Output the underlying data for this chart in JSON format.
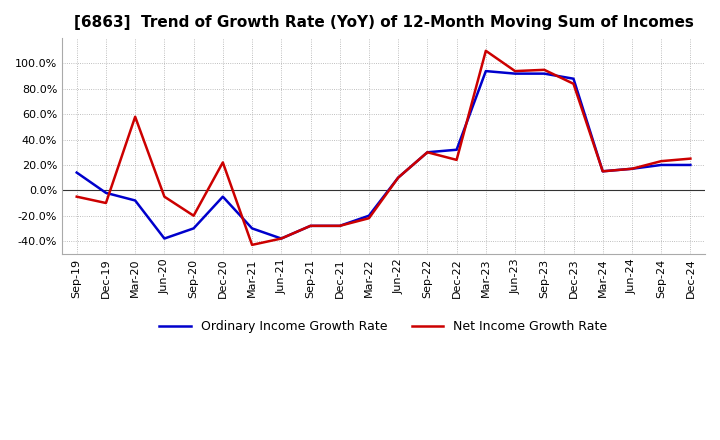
{
  "title": "[6863]  Trend of Growth Rate (YoY) of 12-Month Moving Sum of Incomes",
  "title_fontsize": 11,
  "ylim": [
    -0.5,
    1.2
  ],
  "yticks": [
    -0.4,
    -0.2,
    0.0,
    0.2,
    0.4,
    0.6,
    0.8,
    1.0
  ],
  "background_color": "#ffffff",
  "grid_color": "#aaaaaa",
  "ordinary_color": "#0000cc",
  "net_color": "#cc0000",
  "legend_ordinary": "Ordinary Income Growth Rate",
  "legend_net": "Net Income Growth Rate",
  "dates": [
    "Sep-19",
    "Dec-19",
    "Mar-20",
    "Jun-20",
    "Sep-20",
    "Dec-20",
    "Mar-21",
    "Jun-21",
    "Sep-21",
    "Dec-21",
    "Mar-22",
    "Jun-22",
    "Sep-22",
    "Dec-22",
    "Mar-23",
    "Jun-23",
    "Sep-23",
    "Dec-23",
    "Mar-24",
    "Jun-24",
    "Sep-24",
    "Dec-24"
  ],
  "ordinary_income": [
    0.14,
    -0.02,
    -0.08,
    -0.38,
    -0.3,
    -0.05,
    -0.3,
    -0.38,
    -0.28,
    -0.28,
    -0.2,
    0.1,
    0.3,
    0.32,
    0.94,
    0.92,
    0.92,
    0.88,
    0.15,
    0.17,
    0.2,
    0.2
  ],
  "net_income": [
    -0.05,
    -0.1,
    0.58,
    -0.05,
    -0.2,
    0.22,
    -0.43,
    -0.38,
    -0.28,
    -0.28,
    -0.22,
    0.1,
    0.3,
    0.24,
    1.1,
    0.94,
    0.95,
    0.84,
    0.15,
    0.17,
    0.23,
    0.25
  ]
}
